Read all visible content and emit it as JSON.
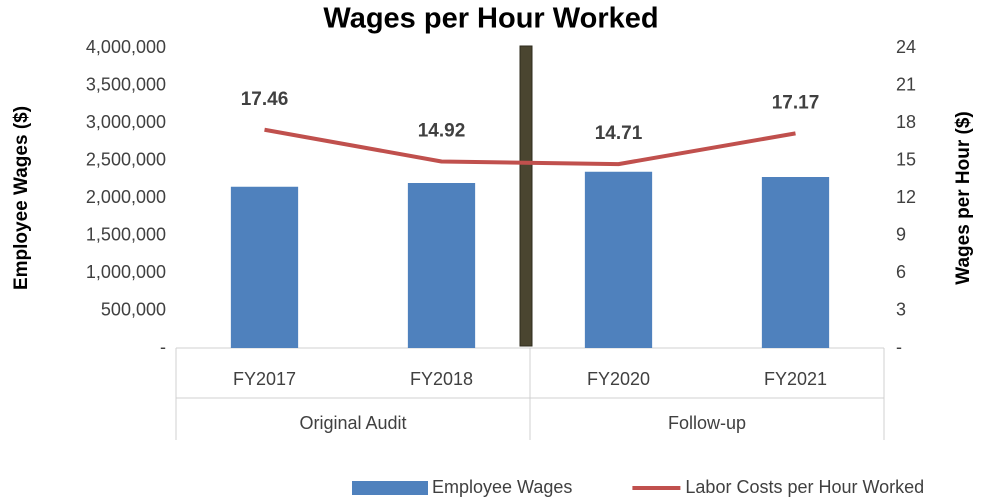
{
  "chart_data": {
    "type": "combo",
    "title": "Wages per Hour Worked",
    "y_label": "Employee Wages ($)",
    "y2_label": "Wages per Hour ($)",
    "categories": [
      "FY2017",
      "FY2018",
      "FY2020",
      "FY2021"
    ],
    "groups": [
      {
        "name": "Original Audit",
        "count": 2
      },
      {
        "name": "Follow-up",
        "count": 2
      }
    ],
    "series": [
      {
        "name": "Employee Wages",
        "type": "bar",
        "color": "#4f81bd",
        "axis": "y",
        "values": [
          2150000,
          2200000,
          2350000,
          2280000
        ]
      },
      {
        "name": "Labor Costs per Hour Worked",
        "type": "line",
        "color": "#c0504d",
        "axis": "y2",
        "values": [
          17.46,
          14.92,
          14.71,
          17.17
        ],
        "data_labels": true
      }
    ],
    "ylim": [
      0,
      4000000
    ],
    "yticks": [
      {
        "value": 0,
        "label": "-"
      },
      {
        "value": 500000,
        "label": "500,000"
      },
      {
        "value": 1000000,
        "label": "1,000,000"
      },
      {
        "value": 1500000,
        "label": "1,500,000"
      },
      {
        "value": 2000000,
        "label": "2,000,000"
      },
      {
        "value": 2500000,
        "label": "2,500,000"
      },
      {
        "value": 3000000,
        "label": "3,000,000"
      },
      {
        "value": 3500000,
        "label": "3,500,000"
      },
      {
        "value": 4000000,
        "label": "4,000,000"
      }
    ],
    "y2lim": [
      0,
      24
    ],
    "y2ticks": [
      {
        "value": 0,
        "label": "-"
      },
      3,
      6,
      9,
      12,
      15,
      18,
      21,
      24
    ],
    "legend": "bottom"
  }
}
